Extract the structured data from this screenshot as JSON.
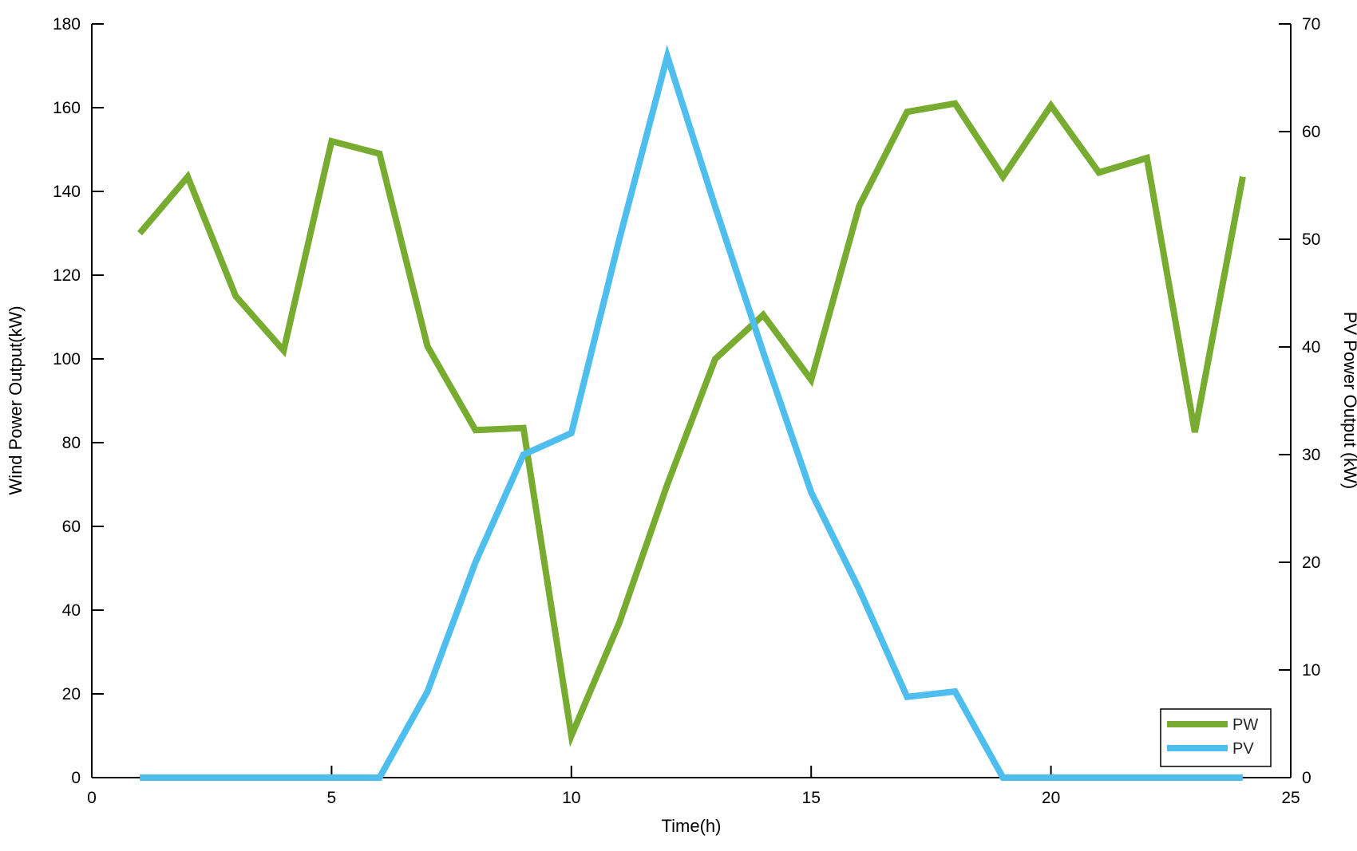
{
  "chart_data": {
    "type": "line",
    "title": "",
    "xlabel": "Time(h)",
    "ylabel_left": "Wind Power Output(kW)",
    "ylabel_right": "PV Power Output (kW)",
    "xlim": [
      0,
      25
    ],
    "ylim_left": [
      0,
      180
    ],
    "ylim_right": [
      0,
      70
    ],
    "x_ticks": [
      0,
      5,
      10,
      15,
      20,
      25
    ],
    "left_ticks": [
      0,
      20,
      40,
      60,
      80,
      100,
      120,
      140,
      160,
      180
    ],
    "right_ticks": [
      0,
      10,
      20,
      30,
      40,
      50,
      60,
      70
    ],
    "grid": false,
    "x_hours": [
      1,
      2,
      3,
      4,
      5,
      6,
      7,
      8,
      9,
      10,
      11,
      12,
      13,
      14,
      15,
      16,
      17,
      18,
      19,
      20,
      21,
      22,
      23,
      24
    ],
    "series": [
      {
        "name": "PW",
        "axis": "left",
        "color": "#77AC30",
        "values": [
          130,
          143.5,
          115,
          102,
          152,
          149,
          103,
          83,
          83.5,
          10,
          37,
          70,
          100,
          110.5,
          95,
          136.5,
          159,
          161,
          143.5,
          160.5,
          144.5,
          148,
          82.5,
          143.5
        ]
      },
      {
        "name": "PV",
        "axis": "right",
        "color": "#4DBEEE",
        "values": [
          0,
          0,
          0,
          0,
          0,
          0,
          8,
          20,
          30,
          32,
          50,
          67,
          53,
          39.5,
          26.5,
          17.5,
          7.5,
          8,
          0,
          0,
          0,
          0,
          0,
          0
        ]
      }
    ],
    "legend": {
      "position": "bottom-right",
      "entries": [
        "PW",
        "PV"
      ]
    }
  },
  "colors": {
    "background": "#ffffff",
    "axis": "#000000",
    "pw": "#77AC30",
    "pv": "#4DBEEE"
  }
}
